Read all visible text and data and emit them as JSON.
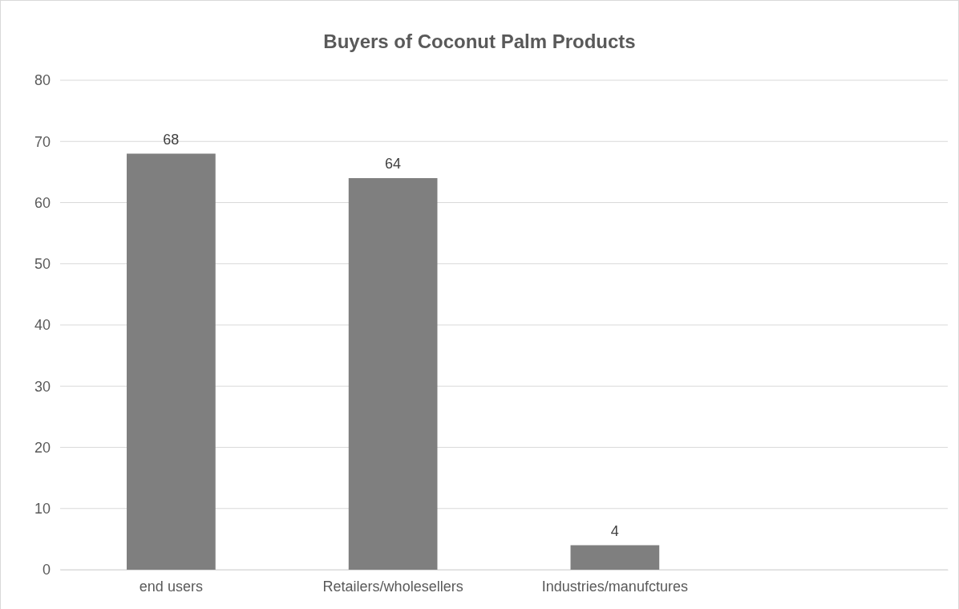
{
  "chart_data": {
    "type": "bar",
    "title": "Buyers of Coconut Palm Products",
    "categories": [
      "end users",
      "Retailers/wholesellers",
      "Industries/manufctures",
      null
    ],
    "values": [
      68,
      64,
      4,
      null
    ],
    "color": "#7f7f7f",
    "ylim": [
      0,
      80
    ],
    "yticks": [
      0,
      10,
      20,
      30,
      40,
      50,
      60,
      70,
      80
    ],
    "grid": "y",
    "data_labels": true
  }
}
